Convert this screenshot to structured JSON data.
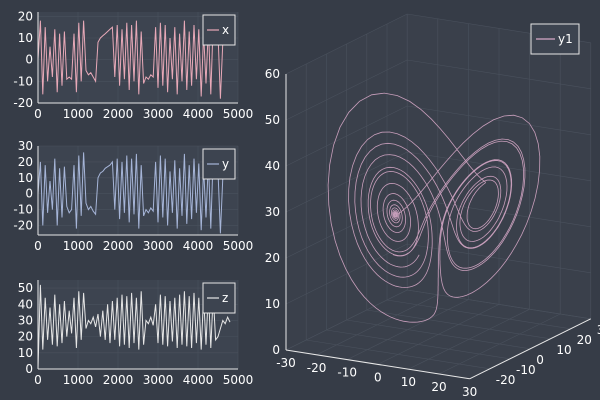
{
  "theme": {
    "background": "#363c47",
    "plot_background": "#3d4450",
    "axis_color": "#e8e8e8",
    "grid_color": "#4a515d",
    "text_color": "#ffffff"
  },
  "chart_data": [
    {
      "type": "line",
      "series": [
        {
          "name": "x",
          "color": "#e8a9b8",
          "values": [
            0,
            18,
            -16,
            15,
            -10,
            6,
            -8,
            14,
            -15,
            12,
            -12,
            13,
            -9,
            -8,
            -9,
            12,
            -15,
            17,
            -10,
            18,
            -5,
            -7,
            -6,
            -8,
            -10,
            8,
            10,
            11,
            12,
            13,
            14,
            15,
            -8,
            16,
            -12,
            14,
            -9,
            17,
            -14,
            16,
            -10,
            18,
            -16,
            13,
            -11,
            -8,
            -9,
            -7,
            -8,
            15,
            -13,
            17,
            -12,
            16,
            -15,
            10,
            -9,
            15,
            -16,
            12,
            -10,
            18,
            -14,
            13,
            -12,
            16,
            -9,
            14,
            -17,
            12,
            -11,
            15,
            -16,
            17,
            10,
            12,
            -18,
            8,
            9,
            10,
            9
          ]
        }
      ],
      "x_ticks": [
        0,
        1000,
        2000,
        3000,
        4000,
        5000
      ],
      "y_ticks": [
        -20,
        -10,
        0,
        10,
        20
      ],
      "xlim": [
        0,
        5000
      ],
      "ylim": [
        -20,
        22
      ],
      "x_end": 4800,
      "legend": "top-right"
    },
    {
      "type": "line",
      "series": [
        {
          "name": "y",
          "color": "#a6b5d8",
          "values": [
            0,
            20,
            -20,
            18,
            -12,
            8,
            -10,
            22,
            -20,
            16,
            -15,
            17,
            -8,
            -12,
            -10,
            18,
            -22,
            24,
            -14,
            26,
            -6,
            -10,
            -8,
            -11,
            -13,
            10,
            13,
            14,
            16,
            17,
            18,
            20,
            -10,
            22,
            -16,
            20,
            -12,
            24,
            -18,
            22,
            -13,
            25,
            -22,
            18,
            -14,
            -10,
            -12,
            -9,
            -11,
            20,
            -18,
            24,
            -15,
            22,
            -20,
            14,
            -12,
            21,
            -22,
            16,
            -14,
            25,
            -19,
            18,
            -16,
            22,
            -12,
            19,
            -23,
            16,
            -15,
            20,
            -22,
            24,
            12,
            14,
            -25,
            10,
            11,
            12,
            11
          ]
        }
      ],
      "x_ticks": [
        0,
        1000,
        2000,
        3000,
        4000,
        5000
      ],
      "y_ticks": [
        -20,
        -10,
        0,
        10,
        20,
        30
      ],
      "xlim": [
        0,
        5000
      ],
      "ylim": [
        -26,
        30
      ],
      "x_end": 4800,
      "legend": "top-right"
    },
    {
      "type": "line",
      "series": [
        {
          "name": "z",
          "color": "#e6e6e6",
          "values": [
            0,
            52,
            12,
            44,
            18,
            38,
            15,
            46,
            14,
            40,
            16,
            42,
            20,
            36,
            22,
            44,
            13,
            48,
            18,
            47,
            25,
            30,
            28,
            32,
            26,
            34,
            20,
            36,
            18,
            40,
            16,
            42,
            18,
            44,
            14,
            46,
            15,
            45,
            13,
            47,
            16,
            44,
            12,
            48,
            15,
            30,
            28,
            32,
            27,
            40,
            16,
            46,
            15,
            45,
            14,
            42,
            17,
            44,
            13,
            46,
            15,
            48,
            14,
            45,
            13,
            47,
            16,
            44,
            12,
            45,
            15,
            48,
            13,
            46,
            18,
            20,
            25,
            30,
            28,
            32,
            29
          ]
        }
      ],
      "x_ticks": [
        0,
        1000,
        2000,
        3000,
        4000,
        5000
      ],
      "y_ticks": [
        0,
        10,
        20,
        30,
        40,
        50
      ],
      "xlim": [
        0,
        5000
      ],
      "ylim": [
        0,
        55
      ],
      "x_end": 4800,
      "legend": "top-right"
    },
    {
      "type": "line3d",
      "series": [
        {
          "name": "y1",
          "color": "#d7a9c8"
        }
      ],
      "attractor": {
        "sigma": 10,
        "rho": 28,
        "beta": 2.6666667,
        "dt": 0.01,
        "steps": 1800,
        "start": [
          1,
          0,
          0
        ]
      },
      "x_ticks": [
        -30,
        -20,
        -10,
        0,
        10,
        20,
        30
      ],
      "y_ticks": [
        -20,
        -10,
        0,
        10,
        20,
        30
      ],
      "z_ticks": [
        0,
        10,
        20,
        30,
        40,
        50,
        60
      ],
      "xlim": [
        -30,
        30
      ],
      "ylim": [
        -30,
        30
      ],
      "zlim": [
        0,
        60
      ],
      "legend": "top-right"
    }
  ]
}
